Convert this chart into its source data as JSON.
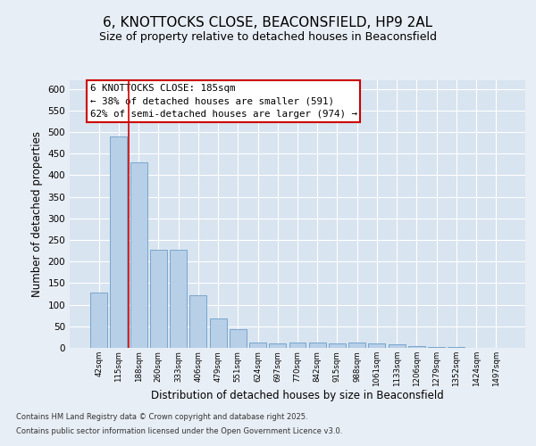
{
  "title": "6, KNOTTOCKS CLOSE, BEACONSFIELD, HP9 2AL",
  "subtitle": "Size of property relative to detached houses in Beaconsfield",
  "xlabel": "Distribution of detached houses by size in Beaconsfield",
  "ylabel": "Number of detached properties",
  "categories": [
    "42sqm",
    "115sqm",
    "188sqm",
    "260sqm",
    "333sqm",
    "406sqm",
    "479sqm",
    "551sqm",
    "624sqm",
    "697sqm",
    "770sqm",
    "842sqm",
    "915sqm",
    "988sqm",
    "1061sqm",
    "1133sqm",
    "1206sqm",
    "1279sqm",
    "1352sqm",
    "1424sqm",
    "1497sqm"
  ],
  "values": [
    128,
    490,
    430,
    228,
    228,
    122,
    68,
    44,
    13,
    11,
    13,
    13,
    11,
    12,
    11,
    8,
    5,
    3,
    2,
    1,
    1
  ],
  "bar_color": "#b8cfe8",
  "bar_edge_color": "#6a9ec8",
  "red_line_x": 1.5,
  "red_line_color": "#cc0000",
  "annotation_title": "6 KNOTTOCKS CLOSE: 185sqm",
  "annotation_line1": "← 38% of detached houses are smaller (591)",
  "annotation_line2": "62% of semi-detached houses are larger (974) →",
  "annotation_box_color": "#cc0000",
  "ylim": [
    0,
    620
  ],
  "yticks": [
    0,
    50,
    100,
    150,
    200,
    250,
    300,
    350,
    400,
    450,
    500,
    550,
    600
  ],
  "background_color": "#e8eef5",
  "plot_background_color": "#d8e4f0",
  "footer_line1": "Contains HM Land Registry data © Crown copyright and database right 2025.",
  "footer_line2": "Contains public sector information licensed under the Open Government Licence v3.0.",
  "title_fontsize": 11,
  "subtitle_fontsize": 9,
  "xlabel_fontsize": 8.5,
  "ylabel_fontsize": 8.5
}
